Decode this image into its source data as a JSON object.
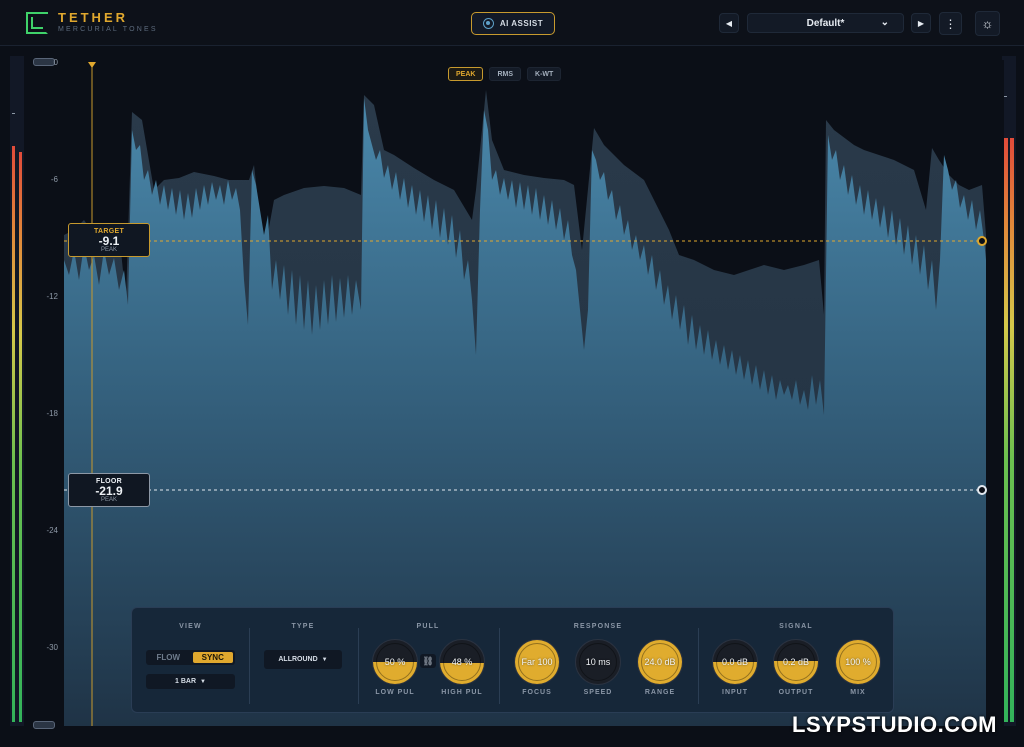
{
  "header": {
    "brand": "TETHER",
    "brand_sub": "MERCURIAL TONES",
    "ai_assist_label": "AI ASSIST",
    "prev_label": "◀",
    "next_label": "▶",
    "preset_name": "Default*",
    "preset_chevron": "⌄",
    "more_label": "⋮",
    "settings_icon": "☼"
  },
  "graph": {
    "modes": [
      "PEAK",
      "RMS",
      "K-WT"
    ],
    "active_mode": "PEAK",
    "axis_labels": [
      "0",
      "-6",
      "-12",
      "-18",
      "-24",
      "-30"
    ],
    "target": {
      "title": "TARGET",
      "value": "-9.1",
      "sub": "PEAK"
    },
    "floor": {
      "title": "FLOOR",
      "value": "-21.9",
      "sub": "PEAK"
    }
  },
  "panel": {
    "view": {
      "label": "VIEW",
      "flow": "FLOW",
      "sync": "SYNC",
      "active": "SYNC",
      "bars": "1 BAR"
    },
    "type": {
      "label": "TYPE",
      "value": "ALLROUND"
    },
    "pull": {
      "label": "PULL",
      "knobs": [
        {
          "value": "50 %",
          "label": "LOW PUL",
          "fraction": 0.5
        },
        {
          "value": "48 %",
          "label": "HIGH PUL",
          "fraction": 0.48
        }
      ]
    },
    "response": {
      "label": "RESPONSE",
      "knobs": [
        {
          "value": "Far 100",
          "label": "FOCUS",
          "fraction": 1.0
        },
        {
          "value": "10 ms",
          "label": "SPEED",
          "fraction": 0.0
        },
        {
          "value": "24.0 dB",
          "label": "RANGE",
          "fraction": 1.0
        }
      ]
    },
    "signal": {
      "label": "SIGNAL",
      "knobs": [
        {
          "value": "0.0 dB",
          "label": "INPUT",
          "fraction": 0.5
        },
        {
          "value": "0.2 dB",
          "label": "OUTPUT",
          "fraction": 0.52
        },
        {
          "value": "100 %",
          "label": "MIX",
          "fraction": 1.0
        }
      ]
    }
  },
  "watermark": "LSYPSTUDIO.COM",
  "colors": {
    "accent": "#e0a82e",
    "brand_green": "#3fd26a",
    "wave": "#3f7a9a",
    "background": "#0b0f17"
  }
}
